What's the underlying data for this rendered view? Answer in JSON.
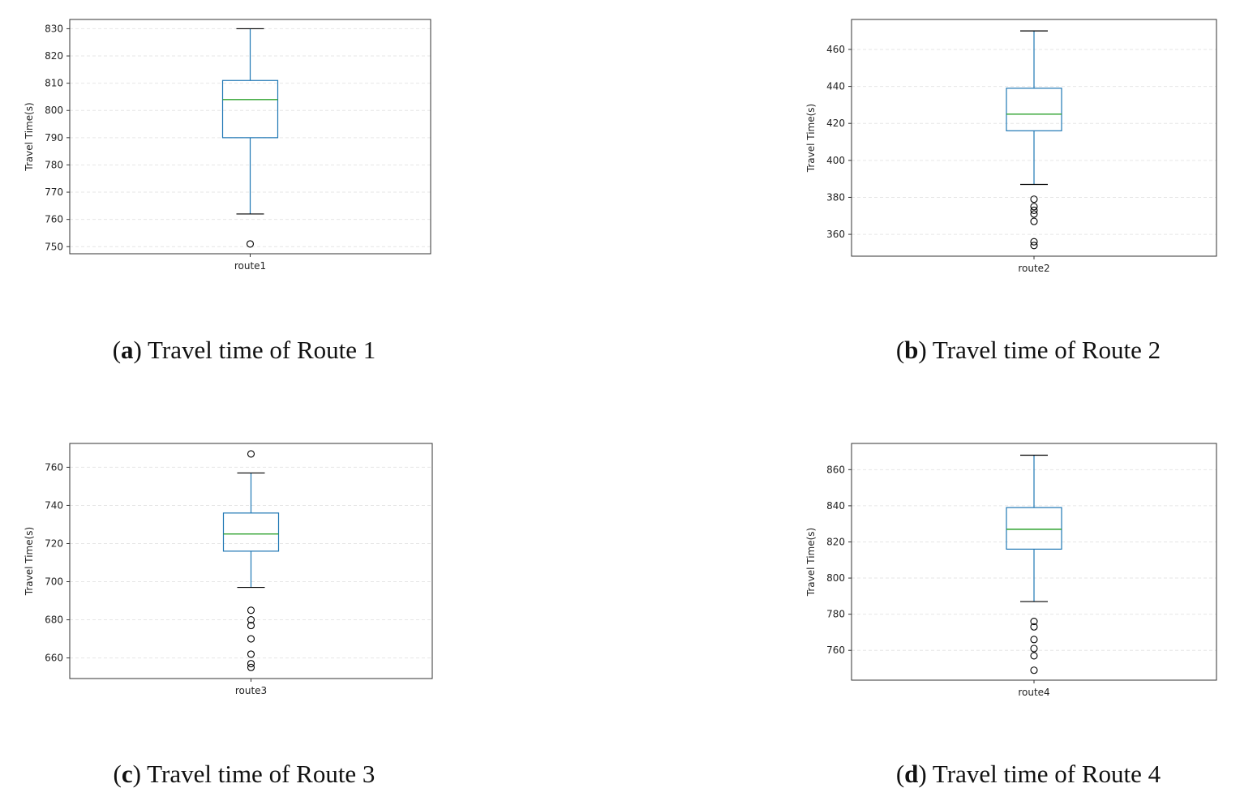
{
  "colors": {
    "box": "#1f77b4",
    "median": "#2ca02c",
    "whisker_cap": "#000000",
    "flier": "#000000",
    "grid": "#e6e6e6",
    "axes": "#333333"
  },
  "panels": [
    {
      "letter": "a",
      "caption": "Travel time of Route 1"
    },
    {
      "letter": "b",
      "caption": "Travel time of Route 2"
    },
    {
      "letter": "c",
      "caption": "Travel time of Route 3"
    },
    {
      "letter": "d",
      "caption": "Travel time of Route 4"
    }
  ],
  "chart_data": [
    {
      "type": "box",
      "categories": [
        "route1"
      ],
      "ylabel": "Travel Time(s)",
      "ylim": [
        747.4,
        833.4
      ],
      "yticks": [
        750,
        760,
        770,
        780,
        790,
        800,
        810,
        820,
        830
      ],
      "grid": true,
      "box": {
        "whisker_low": 762,
        "q1": 790,
        "median": 804,
        "q3": 811,
        "whisker_high": 830
      },
      "fliers": [
        751
      ]
    },
    {
      "type": "box",
      "categories": [
        "route2"
      ],
      "ylabel": "Travel Time(s)",
      "ylim": [
        348.2,
        476.2
      ],
      "yticks": [
        360,
        380,
        400,
        420,
        440,
        460
      ],
      "grid": true,
      "box": {
        "whisker_low": 387,
        "q1": 416,
        "median": 425,
        "q3": 439,
        "whisker_high": 470
      },
      "fliers": [
        379,
        375,
        373,
        371,
        367,
        356,
        354
      ]
    },
    {
      "type": "box",
      "categories": [
        "route3"
      ],
      "ylabel": "Travel Time(s)",
      "ylim": [
        649.2,
        772.5
      ],
      "yticks": [
        660,
        680,
        700,
        720,
        740,
        760
      ],
      "grid": true,
      "box": {
        "whisker_low": 697,
        "q1": 716,
        "median": 725,
        "q3": 736,
        "whisker_high": 757
      },
      "fliers": [
        767,
        685,
        680,
        677,
        670,
        662,
        657,
        655
      ]
    },
    {
      "type": "box",
      "categories": [
        "route4"
      ],
      "ylabel": "Travel Time(s)",
      "ylim": [
        743.5,
        874.5
      ],
      "yticks": [
        760,
        780,
        800,
        820,
        840,
        860
      ],
      "grid": true,
      "box": {
        "whisker_low": 787,
        "q1": 816,
        "median": 827,
        "q3": 839,
        "whisker_high": 868
      },
      "fliers": [
        776,
        773,
        766,
        761,
        757,
        749
      ]
    }
  ]
}
